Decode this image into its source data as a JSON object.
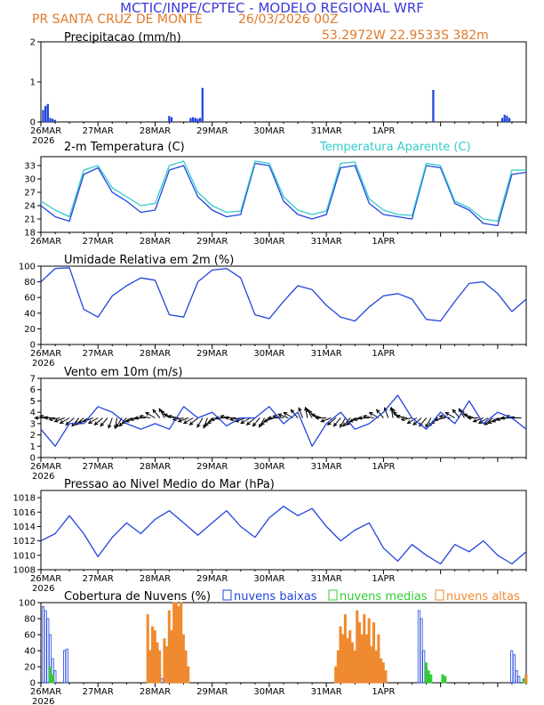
{
  "header": {
    "title": "MCTIC/INPE/CPTEC - MODELO REGIONAL WRF",
    "location": "PR SANTA CRUZ DE MONTE",
    "run": "26/03/2026 00Z",
    "coords": "53.2972W 22.9533S 382m"
  },
  "colors": {
    "blue": "#2244dd",
    "cyan": "#33cccc",
    "green": "#33cc33",
    "orange": "#f08a30",
    "black": "#000000",
    "title": "#3a3ad8",
    "subtitle": "#e07a2a"
  },
  "x_axis": {
    "days": [
      "26MAR",
      "27MAR",
      "28MAR",
      "29MAR",
      "30MAR",
      "31MAR",
      "1APR"
    ],
    "year": "2026"
  },
  "chart_data": [
    {
      "id": "precip",
      "type": "bar",
      "title": "Precipitacao (mm/h)",
      "ylim": [
        0,
        2
      ],
      "yticks": [
        0,
        1,
        2
      ],
      "x_hours": [
        1,
        2,
        3,
        4,
        5,
        6,
        54,
        55,
        63,
        64,
        65,
        66,
        67,
        68,
        165,
        194,
        195,
        196,
        197
      ],
      "values": [
        0.3,
        0.4,
        0.45,
        0.1,
        0.08,
        0.05,
        0.15,
        0.12,
        0.1,
        0.12,
        0.1,
        0.08,
        0.1,
        0.85,
        0.8,
        0.1,
        0.18,
        0.15,
        0.1
      ]
    },
    {
      "id": "temp",
      "type": "line",
      "title": "2-m Temperatura (C)",
      "legend": "Temperatura Aparente (C)",
      "ylim": [
        18,
        35
      ],
      "yticks": [
        18,
        21,
        24,
        27,
        30,
        33
      ],
      "x_hours": [
        0,
        6,
        12,
        18,
        24,
        30,
        36,
        42,
        48,
        54,
        60,
        66,
        72,
        78,
        84,
        90,
        96,
        102,
        108,
        114,
        120,
        126,
        132,
        138,
        144,
        150,
        156,
        162,
        168,
        174,
        180,
        186,
        192,
        198,
        204
      ],
      "series": [
        {
          "name": "Temperatura (C)",
          "values": [
            24,
            21.5,
            20.5,
            31,
            32.5,
            27,
            25,
            22.5,
            23,
            32,
            33,
            26,
            23,
            21.5,
            22,
            33.5,
            33,
            25,
            22,
            21,
            22,
            32.5,
            33,
            24.5,
            22,
            21.5,
            21,
            33,
            32.5,
            24.5,
            23,
            20,
            19.5,
            31,
            31.5
          ]
        },
        {
          "name": "Temperatura Aparente (C)",
          "values": [
            25,
            23,
            21.5,
            32,
            33,
            28,
            26,
            24,
            24.5,
            33,
            34,
            27,
            24,
            22.5,
            22.8,
            34,
            33.5,
            26,
            23,
            22,
            22.8,
            33.5,
            33.8,
            25.5,
            23,
            22,
            21.8,
            33.5,
            33,
            25,
            23.5,
            21,
            20.5,
            32,
            32
          ]
        }
      ]
    },
    {
      "id": "rh",
      "type": "line",
      "title": "Umidade Relativa em 2m (%)",
      "ylim": [
        0,
        100
      ],
      "yticks": [
        0,
        20,
        40,
        60,
        80,
        100
      ],
      "x_hours": [
        0,
        6,
        12,
        18,
        24,
        30,
        36,
        42,
        48,
        54,
        60,
        66,
        72,
        78,
        84,
        90,
        96,
        102,
        108,
        114,
        120,
        126,
        132,
        138,
        144,
        150,
        156,
        162,
        168,
        174,
        180,
        186,
        192,
        198,
        204
      ],
      "series": [
        {
          "name": "Umidade Relativa",
          "values": [
            80,
            97,
            98,
            45,
            35,
            62,
            75,
            85,
            82,
            38,
            35,
            80,
            95,
            97,
            85,
            38,
            33,
            55,
            75,
            70,
            50,
            35,
            30,
            48,
            62,
            65,
            58,
            32,
            30,
            55,
            78,
            80,
            65,
            42,
            58
          ]
        }
      ]
    },
    {
      "id": "wind",
      "type": "line",
      "title": "Vento em 10m (m/s)",
      "ylim": [
        0,
        7
      ],
      "yticks": [
        0,
        1,
        2,
        3,
        4,
        5,
        6,
        7
      ],
      "x_hours": [
        0,
        6,
        12,
        18,
        24,
        30,
        36,
        42,
        48,
        54,
        60,
        66,
        72,
        78,
        84,
        90,
        96,
        102,
        108,
        114,
        120,
        126,
        132,
        138,
        144,
        150,
        156,
        162,
        168,
        174,
        180,
        186,
        192,
        198,
        204
      ],
      "series": [
        {
          "name": "Velocidade",
          "values": [
            2.5,
            1,
            3,
            3,
            4.5,
            4,
            3,
            2.5,
            3,
            2.5,
            4.5,
            3.5,
            4,
            2.8,
            3.5,
            3.5,
            4.5,
            3,
            4,
            1,
            3,
            4,
            2.5,
            3,
            4,
            5.5,
            3.5,
            2.5,
            4,
            3,
            5,
            3,
            4,
            3.5,
            2.5
          ]
        }
      ],
      "arrow_hours": [
        2,
        4,
        6,
        8,
        10,
        12,
        14,
        16,
        18,
        20,
        22,
        24,
        26,
        28,
        30,
        32,
        34,
        36,
        38,
        40,
        42,
        44,
        46,
        48,
        50,
        52,
        54,
        56,
        58,
        60,
        62,
        64,
        66,
        68,
        70,
        72,
        74,
        76,
        78,
        80,
        82,
        84,
        86,
        88,
        90,
        92,
        94,
        96,
        98,
        100,
        102,
        104,
        106,
        108,
        110,
        112,
        114,
        116,
        118,
        120,
        122,
        124,
        126,
        128,
        130,
        132,
        134,
        136,
        138,
        140,
        142,
        144,
        146,
        148,
        150,
        152,
        154,
        156,
        158,
        160,
        162,
        164,
        166,
        168,
        170,
        172,
        174,
        176,
        178,
        180,
        182,
        184,
        186,
        188,
        190,
        192,
        194,
        196,
        198,
        200,
        202
      ],
      "arrow_dirs": [
        270,
        280,
        270,
        260,
        250,
        240,
        230,
        220,
        230,
        240,
        250,
        240,
        230,
        220,
        200,
        190,
        210,
        220,
        240,
        250,
        260,
        270,
        280,
        300,
        320,
        330,
        310,
        290,
        280,
        260,
        250,
        240,
        230,
        210,
        200,
        220,
        240,
        260,
        270,
        280,
        270,
        260,
        250,
        240,
        230,
        220,
        210,
        230,
        250,
        270,
        280,
        290,
        300,
        320,
        340,
        350,
        330,
        310,
        290,
        270,
        250,
        230,
        220,
        210,
        220,
        230,
        250,
        260,
        270,
        280,
        300,
        320,
        340,
        350,
        330,
        300,
        280,
        260,
        240,
        230,
        220,
        210,
        220,
        240,
        260,
        280,
        300,
        320,
        330,
        310,
        290,
        270,
        250,
        240,
        230,
        240,
        250,
        260,
        270,
        280,
        270
      ]
    },
    {
      "id": "mslp",
      "type": "line",
      "title": "Pressao ao Nivel Medio do Mar (hPa)",
      "ylim": [
        1008,
        1019
      ],
      "yticks": [
        1008,
        1010,
        1012,
        1014,
        1016,
        1018
      ],
      "x_hours": [
        0,
        6,
        12,
        18,
        24,
        30,
        36,
        42,
        48,
        54,
        60,
        66,
        72,
        78,
        84,
        90,
        96,
        102,
        108,
        114,
        120,
        126,
        132,
        138,
        144,
        150,
        156,
        162,
        168,
        174,
        180,
        186,
        192,
        198,
        204
      ],
      "series": [
        {
          "name": "PNMM",
          "values": [
            1012,
            1013,
            1015.5,
            1013,
            1009.8,
            1012.5,
            1014.5,
            1013,
            1015,
            1016.2,
            1014.5,
            1012.8,
            1014.5,
            1016.2,
            1014,
            1012.5,
            1015.2,
            1016.8,
            1015.5,
            1016.5,
            1014,
            1012,
            1013.5,
            1014.5,
            1011,
            1009.2,
            1011.5,
            1010,
            1008.8,
            1011.5,
            1010.5,
            1012,
            1010,
            1008.8,
            1010.5
          ]
        }
      ]
    },
    {
      "id": "clouds",
      "type": "bar",
      "title": "Cobertura de Nuvens (%)",
      "legend": [
        "nuvens baixas",
        "nuvens medias",
        "nuvens altas"
      ],
      "ylim": [
        0,
        100
      ],
      "yticks": [
        0,
        20,
        40,
        60,
        80,
        100
      ],
      "series": [
        {
          "name": "nuvens baixas",
          "x_hours": [
            1,
            2,
            3,
            4,
            5,
            6,
            10,
            11,
            47,
            48,
            49,
            50,
            51,
            159,
            160,
            161,
            162,
            198,
            199,
            200,
            201
          ],
          "values": [
            95,
            90,
            80,
            60,
            30,
            15,
            40,
            42,
            20,
            30,
            20,
            10,
            5,
            90,
            80,
            40,
            20,
            40,
            35,
            15,
            8
          ]
        },
        {
          "name": "nuvens medias",
          "x_hours": [
            4,
            5,
            46,
            48,
            50,
            54,
            162,
            163,
            164,
            169,
            170,
            203,
            204
          ],
          "values": [
            20,
            10,
            40,
            25,
            15,
            10,
            25,
            15,
            10,
            10,
            8,
            5,
            10
          ]
        },
        {
          "name": "nuvens altas",
          "x_hours": [
            45,
            46,
            47,
            48,
            49,
            50,
            52,
            53,
            54,
            55,
            56,
            57,
            58,
            59,
            60,
            61,
            62,
            124,
            125,
            126,
            127,
            128,
            129,
            130,
            131,
            132,
            133,
            134,
            135,
            136,
            137,
            138,
            139,
            140,
            141,
            142,
            143,
            144,
            145,
            204
          ],
          "values": [
            85,
            40,
            70,
            65,
            50,
            40,
            55,
            45,
            90,
            65,
            100,
            100,
            95,
            100,
            60,
            40,
            20,
            20,
            40,
            70,
            60,
            85,
            55,
            65,
            50,
            40,
            90,
            75,
            60,
            85,
            60,
            80,
            45,
            75,
            40,
            60,
            30,
            25,
            15,
            10
          ]
        }
      ]
    }
  ]
}
